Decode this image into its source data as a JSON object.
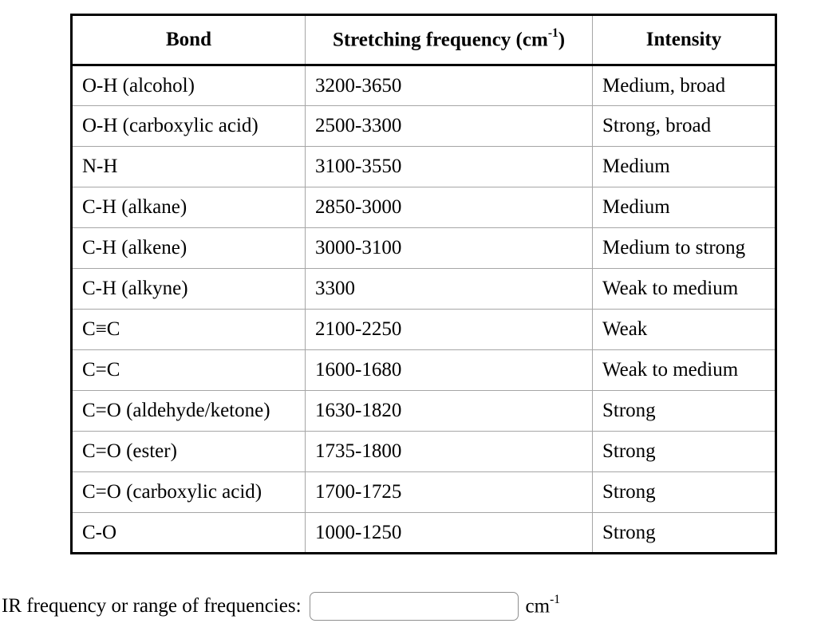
{
  "table": {
    "headers": {
      "bond": "Bond",
      "frequency_prefix": "Stretching frequency (cm",
      "frequency_sup": "-1",
      "frequency_suffix": ")",
      "intensity": "Intensity"
    },
    "rows": [
      {
        "bond": "O-H (alcohol)",
        "frequency": "3200-3650",
        "intensity": "Medium, broad"
      },
      {
        "bond": "O-H (carboxylic acid)",
        "frequency": "2500-3300",
        "intensity": "Strong, broad"
      },
      {
        "bond": "N-H",
        "frequency": "3100-3550",
        "intensity": "Medium"
      },
      {
        "bond": "C-H (alkane)",
        "frequency": "2850-3000",
        "intensity": "Medium"
      },
      {
        "bond": "C-H (alkene)",
        "frequency": "3000-3100",
        "intensity": "Medium to strong"
      },
      {
        "bond": "C-H (alkyne)",
        "frequency": "3300",
        "intensity": "Weak to medium"
      },
      {
        "bond": "C≡C",
        "frequency": "2100-2250",
        "intensity": "Weak"
      },
      {
        "bond": "C=C",
        "frequency": "1600-1680",
        "intensity": "Weak to medium"
      },
      {
        "bond": "C=O (aldehyde/ketone)",
        "frequency": "1630-1820",
        "intensity": "Strong"
      },
      {
        "bond": "C=O (ester)",
        "frequency": "1735-1800",
        "intensity": "Strong"
      },
      {
        "bond": "C=O (carboxylic acid)",
        "frequency": "1700-1725",
        "intensity": "Strong"
      },
      {
        "bond": "C-O",
        "frequency": "1000-1250",
        "intensity": "Strong"
      }
    ],
    "colors": {
      "outer_border": "#000000",
      "inner_divider": "#a6a6a6",
      "background": "#ffffff",
      "text": "#000000"
    }
  },
  "form": {
    "label": "IR frequency or range of frequencies:",
    "input_value": "",
    "unit_base": "cm",
    "unit_sup": "-1"
  }
}
